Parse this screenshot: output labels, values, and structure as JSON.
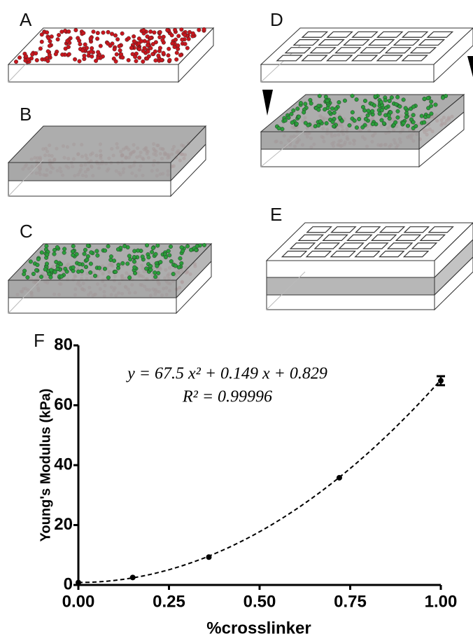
{
  "panels": [
    "A",
    "B",
    "C",
    "D",
    "E"
  ],
  "chart_data": {
    "type": "scatter",
    "panel_label": "F",
    "x_label": "%crosslinker",
    "y_label": "Young's Modulus (kPa)",
    "x": [
      0,
      0.15,
      0.36,
      0.72,
      1.0
    ],
    "values": [
      0.8,
      2.5,
      9.3,
      35.8,
      68.2
    ],
    "errors": [
      null,
      null,
      null,
      null,
      1.5
    ],
    "color": "#000000",
    "fit": {
      "a": 67.5,
      "b": 0.149,
      "c": 0.829
    },
    "fit_equation": "y = 67.5 x² + 0.149 x + 0.829",
    "fit_r2": "R² = 0.99996",
    "xlim": [
      0,
      1
    ],
    "ylim": [
      0,
      80
    ],
    "xticks": [
      {
        "value": 0,
        "label": "0.00"
      },
      {
        "value": 0.25,
        "label": "0.25"
      },
      {
        "value": 0.5,
        "label": "0.50"
      },
      {
        "value": 0.75,
        "label": "0.75"
      },
      {
        "value": 1,
        "label": "1.00"
      }
    ],
    "yticks": [
      0,
      20,
      40,
      60,
      80
    ],
    "grid": false
  }
}
